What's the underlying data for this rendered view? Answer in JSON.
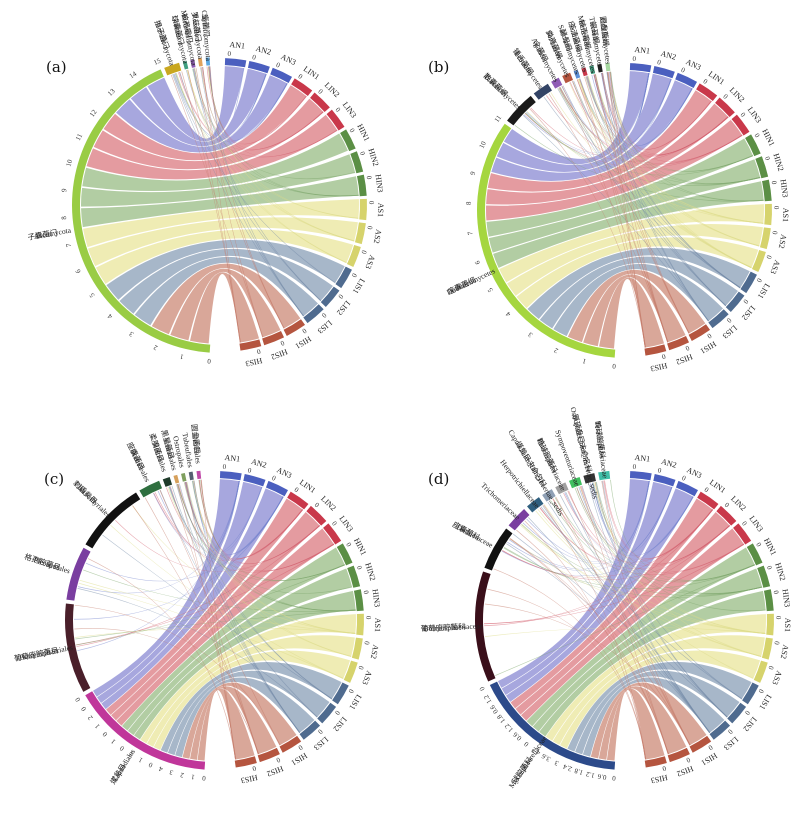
{
  "figure": {
    "background": "#ffffff",
    "sample_colors": {
      "AN": "#4b5fbf",
      "LIN": "#c9384a",
      "HIN": "#5b8f45",
      "AS": "#d6d36c",
      "LIS": "#4f6b8f",
      "HIS": "#b5553f"
    },
    "ribbon_colors": {
      "AN": "#8f8fd6",
      "LIN": "#dd7f86",
      "HIN": "#9dbf8a",
      "AS": "#ebe7a0",
      "LIS": "#8fa3bb",
      "HIS": "#cf8f7d"
    }
  },
  "chart_data": [
    {
      "panel": "(a)",
      "type": "chord",
      "samples": [
        "AN1",
        "AN2",
        "AN3",
        "LIN1",
        "LIN2",
        "LIN3",
        "HIN1",
        "HIN2",
        "HIN3",
        "AS1",
        "AS2",
        "AS3",
        "LIS1",
        "LIS2",
        "LIS3",
        "HIS1",
        "HIS2",
        "HIS3"
      ],
      "taxa": [
        {
          "name": "Chytridiomycota",
          "cn": "壶菌门",
          "value": 0.1,
          "color": "#5ba8e0",
          "label": true
        },
        {
          "name": "Rozellomycota",
          "cn": "罗兹菌门",
          "value": 0.1,
          "color": "#e0a35b",
          "label": true
        },
        {
          "name": "Mortierellomycota",
          "cn": "被孢霉门",
          "value": 0.1,
          "color": "#8f5bb5",
          "label": true
        },
        {
          "name": "Glomeromycota",
          "cn": "球囊菌门",
          "value": 0.1,
          "color": "#3f9f7f",
          "label": true
        },
        {
          "name": "Basidiomycota",
          "cn": "担子菌门",
          "value": 0.6,
          "color": "#c9a71f",
          "label": true
        },
        {
          "name": "Ascomycota",
          "cn": "子囊菌门",
          "value": 15.0,
          "color": "#99cc44",
          "label": true
        }
      ],
      "taxon_ticks": [
        "0",
        "1",
        "2",
        "3",
        "4",
        "5",
        "6",
        "7",
        "8",
        "9",
        "10",
        "11",
        "12",
        "13",
        "14",
        "15"
      ],
      "side_ticks": [
        "0",
        "0",
        "0",
        "0"
      ]
    },
    {
      "panel": "(b)",
      "type": "chord",
      "samples": [
        "AN1",
        "AN2",
        "AN3",
        "LIN1",
        "LIN2",
        "LIN3",
        "HIN1",
        "HIN2",
        "HIN3",
        "AS1",
        "AS2",
        "AS3",
        "LIS1",
        "LIS2",
        "LIS3",
        "HIS1",
        "HIS2",
        "HIS3"
      ],
      "taxa": [
        {
          "name": "Orbiliomycetes",
          "cn": "圆盘菌纲",
          "value": 0.15,
          "color": "#a6d8a0",
          "label": true
        },
        {
          "name": "Tremellomycetes",
          "cn": "银耳纲",
          "value": 0.15,
          "color": "#222222",
          "label": true
        },
        {
          "name": "Mortierellomycetes",
          "cn": "被孢霉纲",
          "value": 0.15,
          "color": "#3f9f7f",
          "label": true
        },
        {
          "name": "Lecanoromycetes",
          "cn": "茶渍菌纲",
          "value": 0.15,
          "color": "#c9384a",
          "label": true
        },
        {
          "name": "Saccharomycetes",
          "cn": "酵母纲",
          "value": 0.15,
          "color": "#5b8fd6",
          "label": true
        },
        {
          "name": "Sordariomycetes",
          "cn": "粪壳菌纲",
          "value": 0.3,
          "color": "#b5553f",
          "label": true
        },
        {
          "name": "Agaricomycetes",
          "cn": "伞菌纲",
          "value": 0.3,
          "color": "#8f5bb5",
          "label": true
        },
        {
          "name": "Leotiomycetes",
          "cn": "锤舌菌纲",
          "value": 0.6,
          "color": "#334466",
          "label": true
        },
        {
          "name": "Eurotiomycetes",
          "cn": "散囊菌纲",
          "value": 1.2,
          "color": "#1a1a1a",
          "label": true
        },
        {
          "name": "Dothideomycetes",
          "cn": "座囊菌纲",
          "value": 11.0,
          "color": "#a5d63f",
          "label": true
        }
      ],
      "taxon_ticks": [
        "0",
        "1",
        "2",
        "3",
        "4",
        "5",
        "6",
        "7",
        "8",
        "9",
        "10",
        "11"
      ],
      "side_ticks": [
        "0",
        "0",
        "0",
        "0",
        "0",
        "0",
        "0",
        "0",
        "1"
      ]
    },
    {
      "panel": "(c)",
      "type": "chord",
      "samples": [
        "AN1",
        "AN2",
        "AN3",
        "LIN1",
        "LIN2",
        "LIN3",
        "HIN1",
        "HIN2",
        "HIN3",
        "AS1",
        "AS2",
        "AS3",
        "LIS1",
        "LIS2",
        "LIS3",
        "HIS1",
        "HIS2",
        "HIS3"
      ],
      "taxa": [
        {
          "name": "Orbiliales",
          "cn": "圆盘菌目",
          "value": 0.1,
          "color": "#c04aa8",
          "label": true
        },
        {
          "name": "Tubeufiales",
          "cn": "",
          "value": 0.1,
          "color": "#556070",
          "label": true
        },
        {
          "name": "Ostropales",
          "cn": "",
          "value": 0.1,
          "color": "#7f9f5f",
          "label": true
        },
        {
          "name": "Venturiales",
          "cn": "黑星菌目",
          "value": 0.1,
          "color": "#d6a05b",
          "label": true
        },
        {
          "name": "Helotiales",
          "cn": "柔膜菌目",
          "value": 0.2,
          "color": "#1f3b2a",
          "label": true
        },
        {
          "name": "Dothideales",
          "cn": "座囊菌目",
          "value": 0.6,
          "color": "#2f6f3f",
          "label": true
        },
        {
          "name": "Chaetothyriales",
          "cn": "刺盾炱目",
          "value": 2.0,
          "color": "#111111",
          "label": true
        },
        {
          "name": "Pleosporales",
          "cn": "格孢腔菌目",
          "value": 1.5,
          "color": "#7a3ea0",
          "label": true
        },
        {
          "name": "Botryosphaeriales",
          "cn": "葡萄座腔菌目",
          "value": 2.5,
          "color": "#4a1f2a",
          "label": true
        },
        {
          "name": "Capnodiales",
          "cn": "煤炱目",
          "value": 4.0,
          "color": "#c0369a",
          "label": true
        }
      ],
      "taxon_ticks": [
        "0",
        "1",
        "2",
        "3",
        "4",
        "0",
        "1",
        "2",
        "0",
        "1",
        "0",
        "1",
        "2",
        "0",
        "0"
      ],
      "side_ticks": [
        "0",
        "0",
        "0",
        "0",
        "0",
        "0",
        "0"
      ]
    },
    {
      "panel": "(d)",
      "type": "chord",
      "samples": [
        "AN1",
        "AN2",
        "AN3",
        "LIN1",
        "LIN2",
        "LIN3",
        "HIN1",
        "HIN2",
        "HIN3",
        "AS1",
        "AS2",
        "AS3",
        "LIS1",
        "LIS2",
        "LIS3",
        "HIS1",
        "HIS2",
        "HIS3"
      ],
      "taxa": [
        {
          "name": "Teratosphaeriaceae",
          "cn": "畸球腔菌科",
          "value": 0.3,
          "color": "#3fbfa8",
          "label": true
        },
        {
          "name": "Ostropales_fam_Incertae_sedis",
          "cn": "厚顶盘目未命名科",
          "value": 0.3,
          "color": "#333333",
          "label": true
        },
        {
          "name": "Sympoventuriaceae",
          "cn": "",
          "value": 0.3,
          "color": "#3fbf5f",
          "label": true
        },
        {
          "name": "Phaeosphaeriaceae",
          "cn": "暗球腔菌科",
          "value": 0.3,
          "color": "#a0a0a0",
          "label": true
        },
        {
          "name": "Capnodiales_fam_Incertae_sedis",
          "cn": "煤炱目未命名科",
          "value": 0.3,
          "color": "#8fa0b5",
          "label": true
        },
        {
          "name": "Herpotrichiellaceae",
          "cn": "",
          "value": 0.4,
          "color": "#2f5f7f",
          "label": true
        },
        {
          "name": "Trichomeriaceae",
          "cn": "",
          "value": 0.6,
          "color": "#7a3ea0",
          "label": true
        },
        {
          "name": "Dothioraceae",
          "cn": "座囊菌科",
          "value": 1.2,
          "color": "#111111",
          "label": true
        },
        {
          "name": "Botryosphaeriaceae",
          "cn": "葡萄座腔菌科",
          "value": 3.0,
          "color": "#3a0f1a",
          "label": true
        },
        {
          "name": "Mycosphaerellaceae",
          "cn": "球腔菌科",
          "value": 4.2,
          "color": "#2c4a8a",
          "label": true
        }
      ],
      "taxon_ticks": [
        "0",
        "0.6",
        "1.2",
        "1.8",
        "2.4",
        "3",
        "3.6",
        "4.2",
        "0",
        "0.6",
        "1.2",
        "1.8",
        "0.6",
        "1.2",
        "0"
      ],
      "side_ticks": [
        "0",
        "0",
        "0",
        "0",
        "0",
        "0",
        "0"
      ]
    }
  ]
}
